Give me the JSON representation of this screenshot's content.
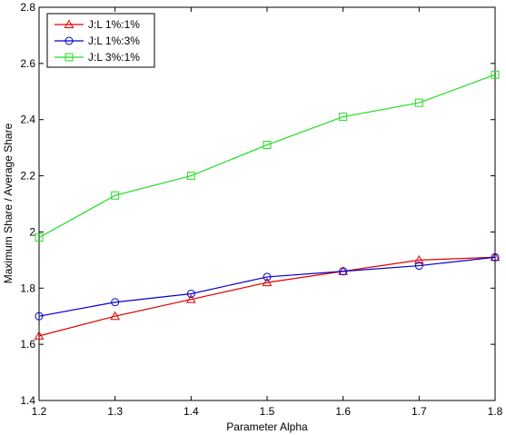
{
  "chart_data": {
    "type": "line",
    "title": "",
    "xlabel": "Parameter Alpha",
    "ylabel": "Maximum Share / Average Share",
    "x": [
      1.2,
      1.3,
      1.4,
      1.5,
      1.6,
      1.7,
      1.8
    ],
    "xlim": [
      1.2,
      1.8
    ],
    "ylim": [
      1.4,
      2.8
    ],
    "xticks": [
      "1.2",
      "1.3",
      "1.4",
      "1.5",
      "1.6",
      "1.7",
      "1.8"
    ],
    "yticks": [
      "1.4",
      "1.6",
      "1.8",
      "2",
      "2.2",
      "2.4",
      "2.6",
      "2.8"
    ],
    "grid": false,
    "legend_position": "top-left",
    "series": [
      {
        "name": "J:L 1%:1%",
        "color": "#e00000",
        "marker": "triangle",
        "values": [
          1.63,
          1.7,
          1.76,
          1.82,
          1.86,
          1.9,
          1.91
        ]
      },
      {
        "name": "J:L 1%:3%",
        "color": "#0000cc",
        "marker": "circle",
        "values": [
          1.7,
          1.75,
          1.78,
          1.84,
          1.86,
          1.88,
          1.91
        ]
      },
      {
        "name": "J:L 3%:1%",
        "color": "#22dd22",
        "marker": "square",
        "values": [
          1.98,
          2.13,
          2.2,
          2.31,
          2.41,
          2.46,
          2.56
        ]
      }
    ]
  }
}
